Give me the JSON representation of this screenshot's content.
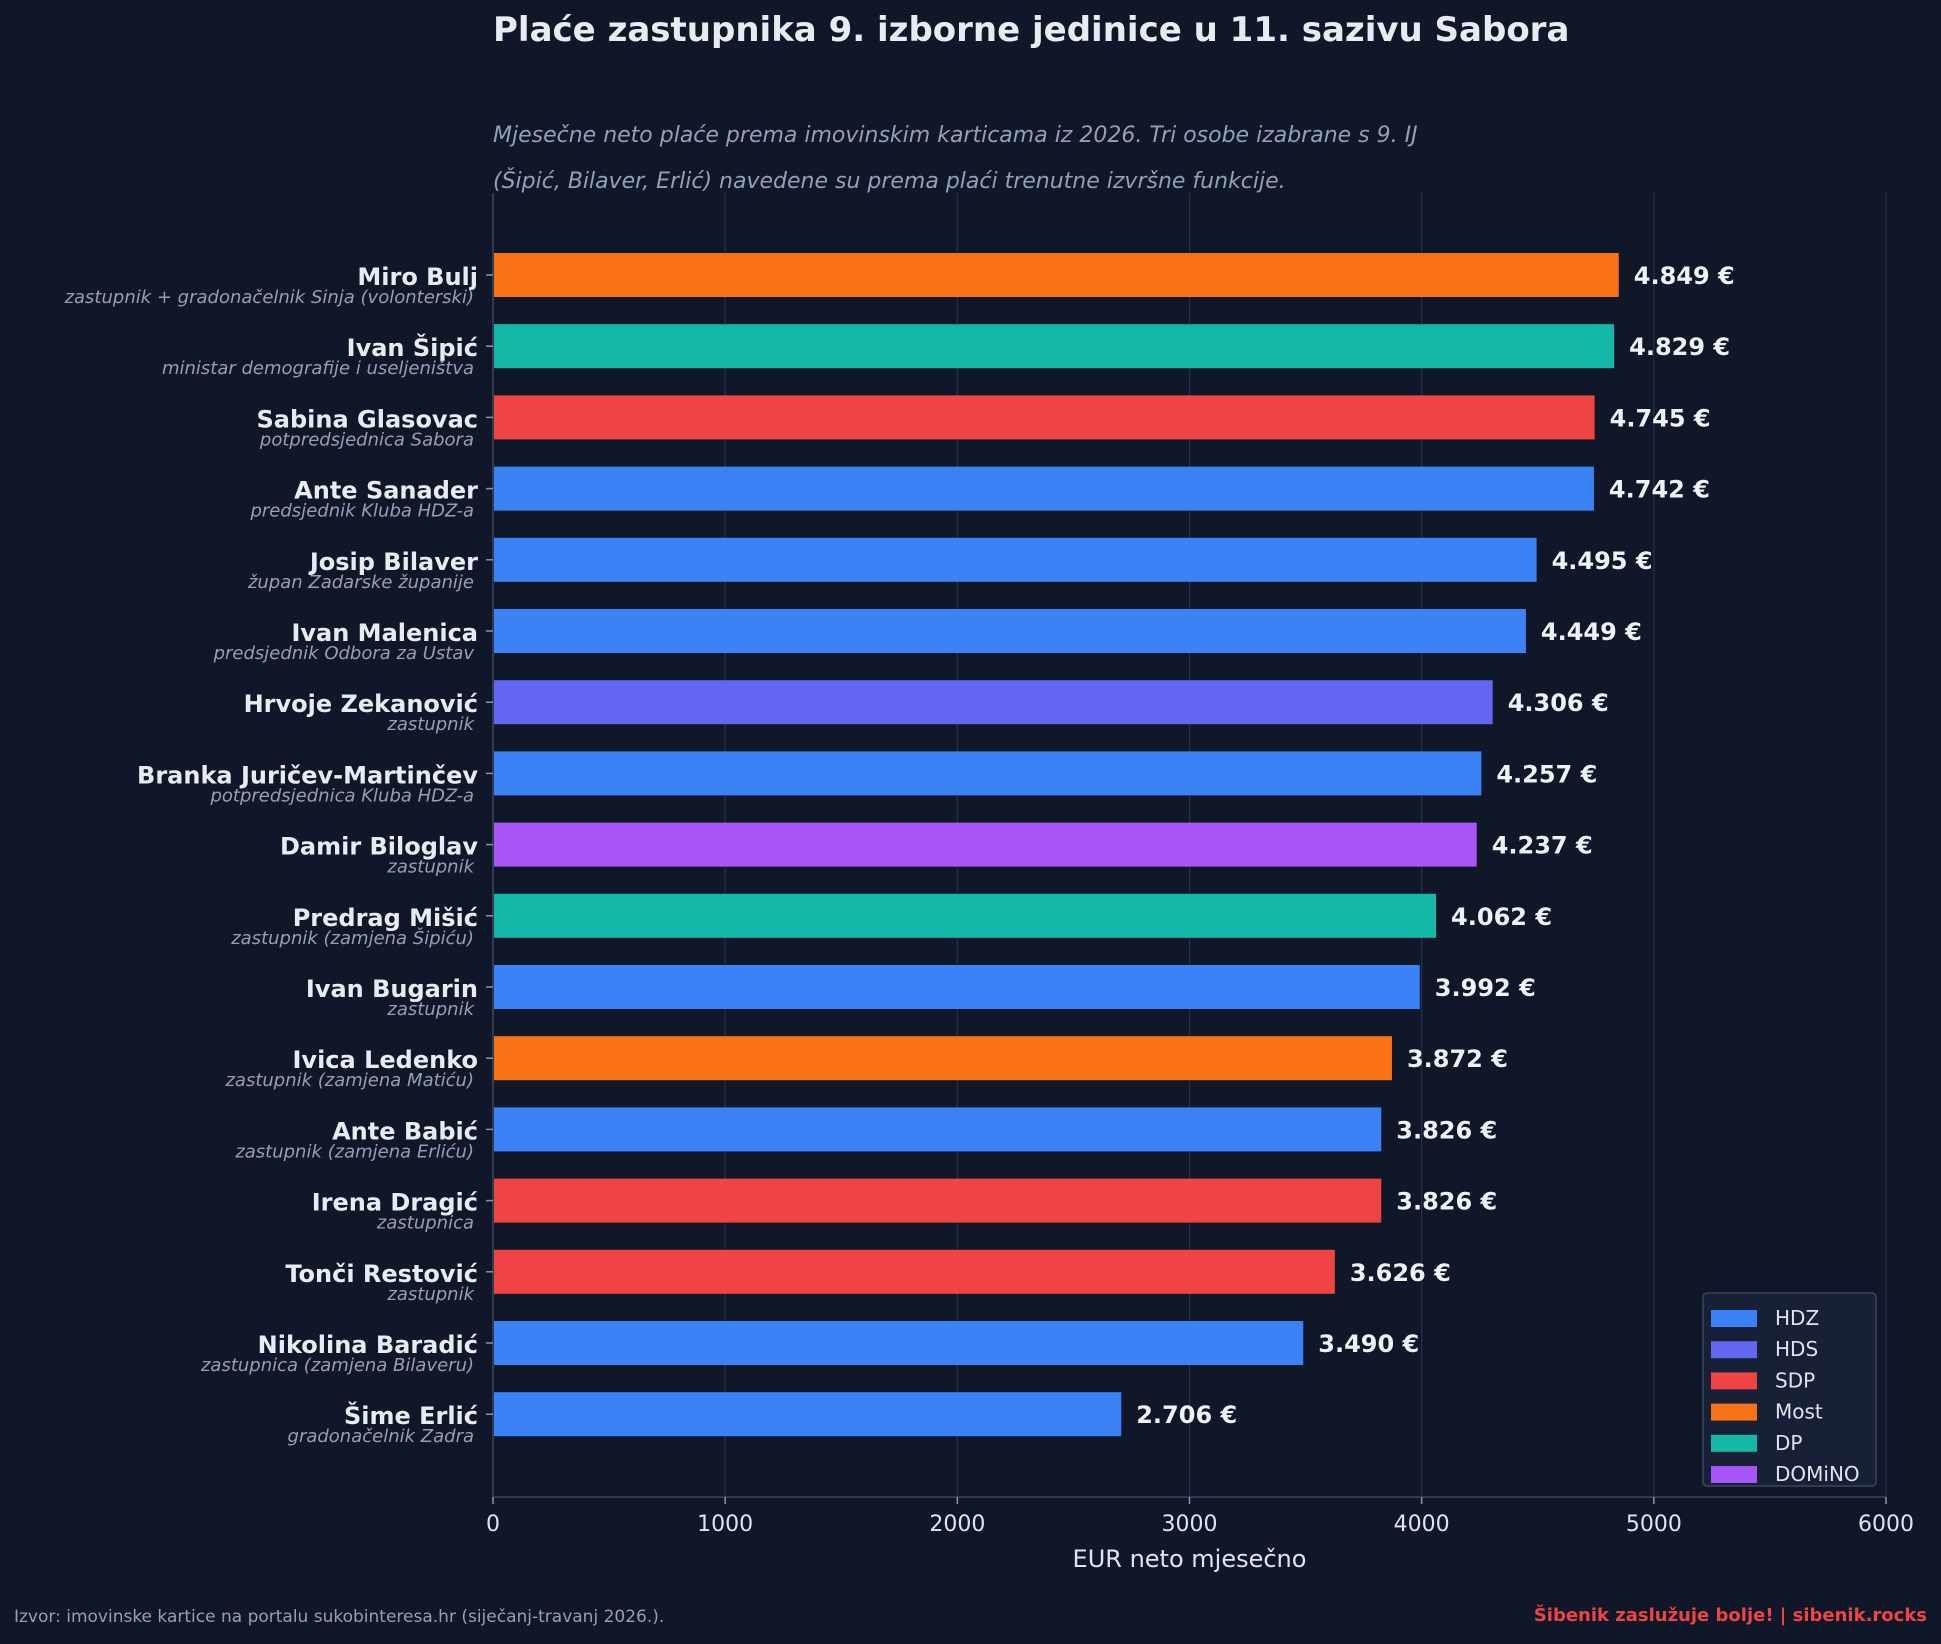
{
  "title": "Plaće zastupnika 9. izborne jedinice u 11. sazivu Sabora",
  "subtitle_lines": [
    "Mjesečne neto plaće prema imovinskim karticama iz 2026. Tri osobe izabrane s 9. IJ",
    "(Šipić, Bilaver, Erlić) navedene su prema plaći trenutne izvršne funkcije."
  ],
  "footer": {
    "source": "Izvor: imovinske kartice na portalu sukobinteresa.hr (siječanj-travanj 2026.).",
    "brand": "Šibenik zaslužuje bolje!  |  sibenik.rocks"
  },
  "colors": {
    "background": "#0f1729",
    "HDZ": "#3b82f6",
    "HDS": "#6366f1",
    "SDP": "#ef4444",
    "Most": "#f97316",
    "DP": "#14b8a6",
    "DOMiNO": "#a855f7"
  },
  "chart_data": {
    "type": "bar",
    "orientation": "horizontal",
    "xlabel": "EUR neto mjesečno",
    "xlim": [
      0,
      6000
    ],
    "xticks": [
      0,
      1000,
      2000,
      3000,
      4000,
      5000,
      6000
    ],
    "grid": "vertical",
    "legend_placement": "bottom-right",
    "legend": [
      "HDZ",
      "HDS",
      "SDP",
      "Most",
      "DP",
      "DOMiNO"
    ],
    "bars": [
      {
        "name": "Miro Bulj",
        "role": "zastupnik + gradonačelnik Sinja (volonterski)",
        "party": "Most",
        "value": 4849,
        "label": "4.849 €"
      },
      {
        "name": "Ivan Šipić",
        "role": "ministar demografije i useljeništva",
        "party": "DP",
        "value": 4829,
        "label": "4.829 €"
      },
      {
        "name": "Sabina Glasovac",
        "role": "potpredsjednica Sabora",
        "party": "SDP",
        "value": 4745,
        "label": "4.745 €"
      },
      {
        "name": "Ante Sanader",
        "role": "predsjednik Kluba HDZ-a",
        "party": "HDZ",
        "value": 4742,
        "label": "4.742 €"
      },
      {
        "name": "Josip Bilaver",
        "role": "župan Zadarske županije",
        "party": "HDZ",
        "value": 4495,
        "label": "4.495 €"
      },
      {
        "name": "Ivan Malenica",
        "role": "predsjednik Odbora za Ustav",
        "party": "HDZ",
        "value": 4449,
        "label": "4.449 €"
      },
      {
        "name": "Hrvoje Zekanović",
        "role": "zastupnik",
        "party": "HDS",
        "value": 4306,
        "label": "4.306 €"
      },
      {
        "name": "Branka Juričev-Martinčev",
        "role": "potpredsjednica Kluba HDZ-a",
        "party": "HDZ",
        "value": 4257,
        "label": "4.257 €"
      },
      {
        "name": "Damir Biloglav",
        "role": "zastupnik",
        "party": "DOMiNO",
        "value": 4237,
        "label": "4.237 €"
      },
      {
        "name": "Predrag Mišić",
        "role": "zastupnik (zamjena Šipiću)",
        "party": "DP",
        "value": 4062,
        "label": "4.062 €"
      },
      {
        "name": "Ivan Bugarin",
        "role": "zastupnik",
        "party": "HDZ",
        "value": 3992,
        "label": "3.992 €"
      },
      {
        "name": "Ivica Ledenko",
        "role": "zastupnik (zamjena Matiću)",
        "party": "Most",
        "value": 3872,
        "label": "3.872 €"
      },
      {
        "name": "Ante Babić",
        "role": "zastupnik (zamjena Erliću)",
        "party": "HDZ",
        "value": 3826,
        "label": "3.826 €"
      },
      {
        "name": "Irena Dragić",
        "role": "zastupnica",
        "party": "SDP",
        "value": 3826,
        "label": "3.826 €"
      },
      {
        "name": "Tonči Restović",
        "role": "zastupnik",
        "party": "SDP",
        "value": 3626,
        "label": "3.626 €"
      },
      {
        "name": "Nikolina Baradić",
        "role": "zastupnica (zamjena Bilaveru)",
        "party": "HDZ",
        "value": 3490,
        "label": "3.490 €"
      },
      {
        "name": "Šime Erlić",
        "role": "gradonačelnik Zadra",
        "party": "HDZ",
        "value": 2706,
        "label": "2.706 €"
      }
    ]
  }
}
